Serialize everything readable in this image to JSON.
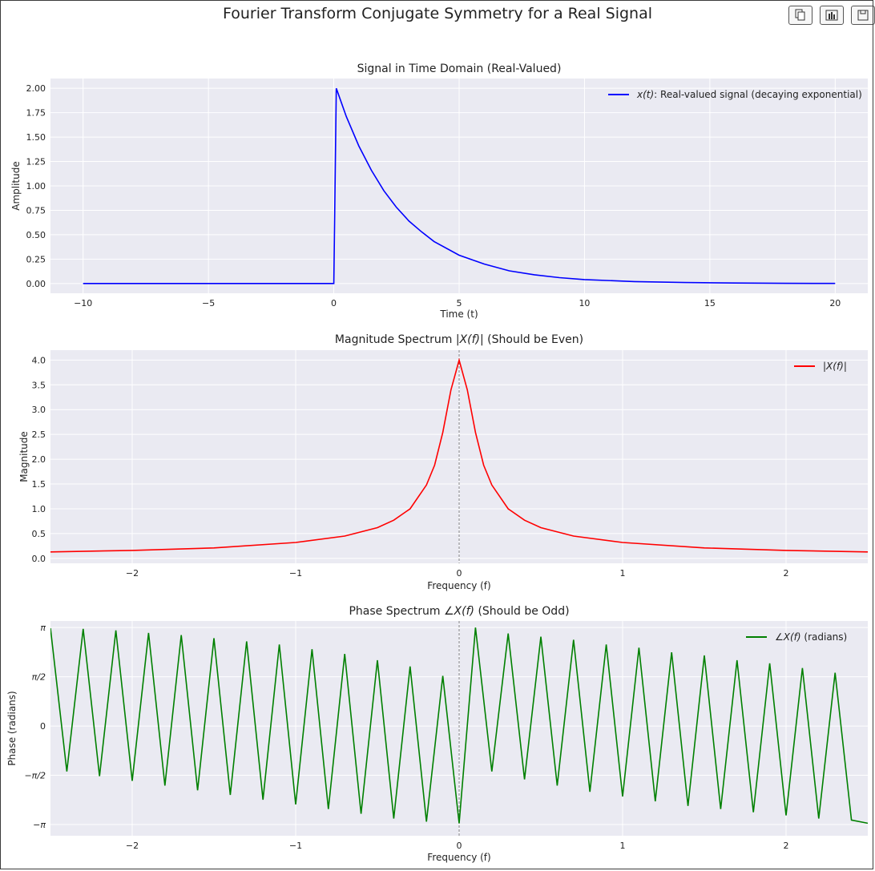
{
  "figure": {
    "title": "Fourier Transform Conjugate Symmetry for a Real Signal"
  },
  "toolbar": {
    "buttons": [
      {
        "name": "copy-button",
        "icon": "copy-icon"
      },
      {
        "name": "chart-button",
        "icon": "bar-chart-icon"
      },
      {
        "name": "save-button",
        "icon": "save-icon"
      }
    ]
  },
  "colors": {
    "plot_bg": "#eaeaf2",
    "grid": "#ffffff",
    "signal": "#0000ff",
    "magnitude": "#ff0000",
    "phase": "#008000",
    "zero_line": "#888888"
  },
  "chart_data": [
    {
      "type": "line",
      "title": "Signal in Time Domain (Real-Valued)",
      "xlabel": "Time (t)",
      "ylabel": "Amplitude",
      "xlim": [
        -11.3,
        21.3
      ],
      "ylim": [
        -0.1,
        2.1
      ],
      "xticks": [
        -10,
        -5,
        0,
        5,
        10,
        15,
        20
      ],
      "xtick_labels": [
        "−10",
        "−5",
        "0",
        "5",
        "10",
        "15",
        "20"
      ],
      "yticks": [
        0,
        0.25,
        0.5,
        0.75,
        1.0,
        1.25,
        1.5,
        1.75,
        2.0
      ],
      "ytick_labels": [
        "0.00",
        "0.25",
        "0.50",
        "0.75",
        "1.00",
        "1.25",
        "1.50",
        "1.75",
        "2.00"
      ],
      "grid": true,
      "legend_position": "top-right",
      "series": [
        {
          "name_prefix": "x(t)",
          "name": ": Real-valued signal (decaying exponential)",
          "color": "#0000ff",
          "x": [
            -10,
            0,
            0.1,
            0.5,
            1,
            1.5,
            2,
            2.5,
            3,
            3.5,
            4,
            5,
            6,
            7,
            8,
            9,
            10,
            12,
            14,
            16,
            18,
            20
          ],
          "y": [
            0,
            0,
            2.0,
            1.71,
            1.41,
            1.16,
            0.95,
            0.78,
            0.64,
            0.53,
            0.43,
            0.29,
            0.2,
            0.13,
            0.09,
            0.06,
            0.04,
            0.02,
            0.01,
            0.005,
            0.002,
            0.001
          ]
        }
      ]
    },
    {
      "type": "line",
      "title_prefix": "Magnitude Spectrum ",
      "title_math": "|X(f)|",
      "title_suffix": " (Should be Even)",
      "xlabel": "Frequency (f)",
      "ylabel": "Magnitude",
      "xlim": [
        -2.5,
        2.5
      ],
      "ylim": [
        -0.1,
        4.2
      ],
      "xticks": [
        -2,
        -1,
        0,
        1,
        2
      ],
      "xtick_labels": [
        "−2",
        "−1",
        "0",
        "1",
        "2"
      ],
      "yticks": [
        0,
        0.5,
        1.0,
        1.5,
        2.0,
        2.5,
        3.0,
        3.5,
        4.0
      ],
      "ytick_labels": [
        "0.0",
        "0.5",
        "1.0",
        "1.5",
        "2.0",
        "2.5",
        "3.0",
        "3.5",
        "4.0"
      ],
      "grid": true,
      "zero_line_x": 0,
      "legend_position": "top-right",
      "series": [
        {
          "name": "|X(f)|",
          "color": "#ff0000",
          "x": [
            -2.5,
            -2.0,
            -1.5,
            -1.0,
            -0.7,
            -0.5,
            -0.4,
            -0.3,
            -0.2,
            -0.15,
            -0.1,
            -0.05,
            0,
            0.05,
            0.1,
            0.15,
            0.2,
            0.3,
            0.4,
            0.5,
            0.7,
            1.0,
            1.5,
            2.0,
            2.5
          ],
          "y": [
            0.13,
            0.16,
            0.21,
            0.32,
            0.45,
            0.62,
            0.77,
            1.0,
            1.48,
            1.88,
            2.54,
            3.4,
            4.0,
            3.4,
            2.54,
            1.88,
            1.48,
            1.0,
            0.77,
            0.62,
            0.45,
            0.32,
            0.21,
            0.16,
            0.13
          ]
        }
      ]
    },
    {
      "type": "line",
      "title_prefix": "Phase Spectrum ",
      "title_math": "∠X(f)",
      "title_suffix": " (Should be Odd)",
      "xlabel": "Frequency (f)",
      "ylabel": "Phase (radians)",
      "xlim": [
        -2.5,
        2.5
      ],
      "ylim": [
        -3.5,
        3.35
      ],
      "xticks": [
        -2,
        -1,
        0,
        1,
        2
      ],
      "xtick_labels": [
        "−2",
        "−1",
        "0",
        "1",
        "2"
      ],
      "yticks": [
        -3.14159,
        -1.5708,
        0,
        1.5708,
        3.14159
      ],
      "ytick_labels": [
        "−π",
        "−π/2",
        "0",
        "π/2",
        "π"
      ],
      "grid": true,
      "zero_line_x": 0,
      "legend_position": "top-right",
      "series": [
        {
          "name": "∠X(f)",
          "name_suffix": " (radians)",
          "color": "#008000",
          "x": [
            -2.5,
            -2.4,
            -2.3,
            -2.2,
            -2.1,
            -2.0,
            -1.9,
            -1.8,
            -1.7,
            -1.6,
            -1.5,
            -1.4,
            -1.3,
            -1.2,
            -1.1,
            -1.0,
            -0.9,
            -0.8,
            -0.7,
            -0.6,
            -0.5,
            -0.4,
            -0.3,
            -0.2,
            -0.1,
            0,
            0.1,
            0.2,
            0.3,
            0.4,
            0.5,
            0.6,
            0.7,
            0.8,
            0.9,
            1.0,
            1.1,
            1.2,
            1.3,
            1.4,
            1.5,
            1.6,
            1.7,
            1.8,
            1.9,
            2.0,
            2.1,
            2.2,
            2.3,
            2.4,
            2.5
          ],
          "y": [
            3.12,
            -1.45,
            3.1,
            -1.6,
            3.05,
            -1.75,
            2.97,
            -1.9,
            2.9,
            -2.05,
            2.8,
            -2.2,
            2.7,
            -2.35,
            2.6,
            -2.5,
            2.45,
            -2.65,
            2.3,
            -2.8,
            2.1,
            -2.95,
            1.9,
            -3.05,
            1.6,
            -3.1,
            3.14,
            -1.45,
            2.95,
            -1.7,
            2.85,
            -1.9,
            2.75,
            -2.1,
            2.6,
            -2.25,
            2.5,
            -2.4,
            2.35,
            -2.55,
            2.25,
            -2.65,
            2.1,
            -2.75,
            2.0,
            -2.85,
            1.85,
            -2.95,
            1.7,
            -3.0,
            -3.1
          ]
        }
      ]
    }
  ]
}
